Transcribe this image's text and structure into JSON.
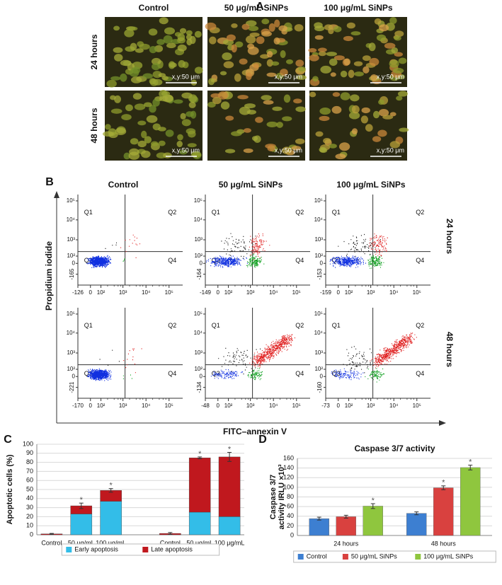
{
  "panel_a": {
    "label": "A",
    "columns": [
      "Control",
      "50 μg/mL SiNPs",
      "100 μg/mL SiNPs"
    ],
    "rows": [
      "24 hours",
      "48 hours"
    ],
    "scale_bar": "x,y:50 μm"
  },
  "panel_b": {
    "label": "B",
    "columns": [
      "Control",
      "50 μg/mL SiNPs",
      "100 μg/mL SiNPs"
    ],
    "rows": [
      "24 hours",
      "48 hours"
    ],
    "y_label": "Propidium iodide",
    "x_label": "FITC–annexin V",
    "quadrants": [
      "Q1",
      "Q2",
      "Q3",
      "Q4"
    ],
    "plots": [
      {
        "yticks": [
          "10⁵",
          "10⁴",
          "10³",
          "10²",
          "0",
          "-165"
        ],
        "xticks": [
          "-126",
          "0",
          "10²",
          "10³",
          "10⁴",
          "10⁵"
        ]
      },
      {
        "yticks": [
          "10⁵",
          "10⁴",
          "10³",
          "10²",
          "0",
          "-164"
        ],
        "xticks": [
          "-149",
          "0",
          "10²",
          "10³",
          "10⁴",
          "10⁵"
        ]
      },
      {
        "yticks": [
          "10⁵",
          "10⁴",
          "10³",
          "10²",
          "0",
          "-153"
        ],
        "xticks": [
          "-159",
          "0",
          "10²",
          "10³",
          "10⁴",
          "10⁵"
        ]
      },
      {
        "yticks": [
          "10⁵",
          "10⁴",
          "10³",
          "10²",
          "0",
          "-221"
        ],
        "xticks": [
          "-170",
          "0",
          "10²",
          "10³",
          "10⁴",
          "10⁵"
        ]
      },
      {
        "yticks": [
          "10⁵",
          "10⁴",
          "10³",
          "10²",
          "0",
          "-134"
        ],
        "xticks": [
          "-48",
          "0",
          "10²",
          "10³",
          "10⁴",
          "10⁵"
        ]
      },
      {
        "yticks": [
          "10⁵",
          "10⁴",
          "10³",
          "10²",
          "0",
          "-160"
        ],
        "xticks": [
          "-73",
          "0",
          "10²",
          "10³",
          "10⁴",
          "10⁵"
        ]
      }
    ]
  },
  "chart_data": [
    {
      "type": "stacked_bar",
      "label": "C",
      "y_label": "Apoptotic cells (%)",
      "categories": [
        "Control",
        "50 μg/mL",
        "100 μg/mL",
        null,
        "Control",
        "50 μg/mL",
        "100 μg/mL"
      ],
      "series": [
        {
          "name": "Early apoptosis",
          "color": "#33bde8",
          "values": [
            0,
            23,
            37,
            null,
            0,
            25,
            20
          ]
        },
        {
          "name": "Late apoptosis",
          "color": "#c0181e",
          "values": [
            1,
            9,
            12,
            null,
            1.5,
            60,
            66
          ],
          "errors": [
            0.5,
            3,
            2,
            null,
            1,
            1,
            5
          ],
          "annotations": [
            null,
            "*",
            "*",
            null,
            null,
            "*",
            "*"
          ]
        }
      ],
      "ylim": [
        0,
        100
      ],
      "yticks": [
        0,
        10,
        20,
        30,
        40,
        50,
        60,
        70,
        80,
        90,
        100
      ]
    },
    {
      "type": "grouped_bar",
      "label": "D",
      "title": "Caspase 3/7 activity",
      "y_label": [
        "Caspase 3/7",
        "activity IRLU ×10³"
      ],
      "categories": [
        "24 hours",
        "48 hours"
      ],
      "series": [
        {
          "name": "Control",
          "color": "#3d7fd1",
          "values": [
            35,
            46
          ],
          "errors": [
            3,
            3
          ],
          "annotations": [
            null,
            null
          ]
        },
        {
          "name": "50 μg/mL SiNPs",
          "color": "#d9413f",
          "values": [
            39,
            99
          ],
          "errors": [
            3,
            4
          ],
          "annotations": [
            null,
            "*"
          ]
        },
        {
          "name": "100 μg/mL SiNPs",
          "color": "#8fc63e",
          "values": [
            61,
            141
          ],
          "errors": [
            5,
            5
          ],
          "annotations": [
            "*",
            "*"
          ]
        }
      ],
      "ylim": [
        0,
        160
      ],
      "yticks": [
        0,
        20,
        40,
        60,
        80,
        100,
        120,
        140,
        160
      ]
    }
  ]
}
